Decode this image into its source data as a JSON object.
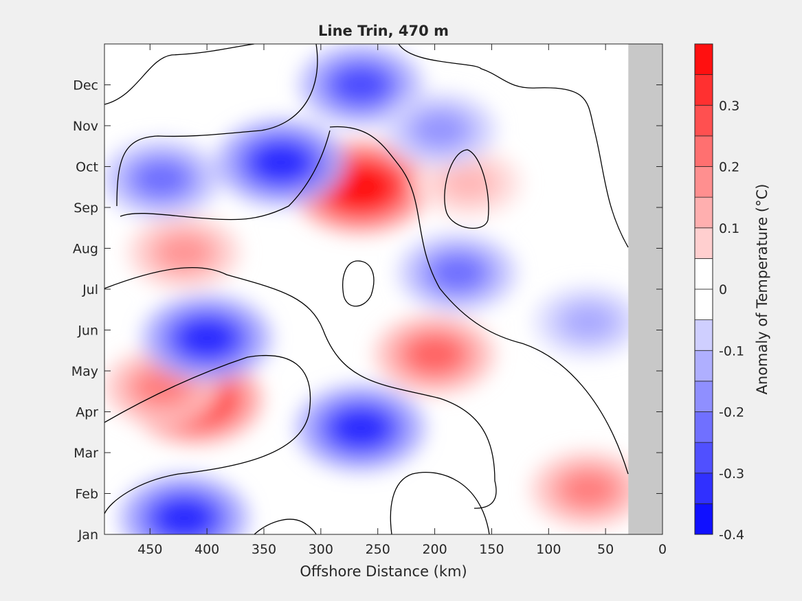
{
  "chart_data": {
    "type": "heatmap",
    "subtype": "filled-contour",
    "title": "Line Trin, 470 m",
    "xlabel": "Offshore Distance (km)",
    "ylabel": "",
    "colorbar_label": "Anomaly of Temperature (°C)",
    "x_reversed": true,
    "xlim": [
      490,
      0
    ],
    "x_ticks": [
      450,
      400,
      350,
      300,
      250,
      200,
      150,
      100,
      50,
      0
    ],
    "y_ticks": [
      "Jan",
      "Feb",
      "Mar",
      "Apr",
      "May",
      "Jun",
      "Jul",
      "Aug",
      "Sep",
      "Oct",
      "Nov",
      "Dec"
    ],
    "clim": [
      -0.4,
      0.4
    ],
    "colorbar_ticks": [
      "0.3",
      "0.2",
      "0.1",
      "0",
      "-0.1",
      "-0.2",
      "-0.3",
      "-0.4"
    ],
    "contour_levels": [
      -0.4,
      -0.35,
      -0.3,
      -0.25,
      -0.2,
      -0.15,
      -0.1,
      -0.05,
      0,
      0.05,
      0.1,
      0.15,
      0.2,
      0.25,
      0.3,
      0.35,
      0.4
    ],
    "no_data_region_x": [
      30,
      0
    ],
    "features": [
      {
        "x": 410,
        "month": 3.3,
        "value": 0.33
      },
      {
        "x": 440,
        "month": 3.6,
        "value": 0.18
      },
      {
        "x": 265,
        "month": 8.5,
        "value": 0.37
      },
      {
        "x": 420,
        "month": 6.9,
        "value": 0.15
      },
      {
        "x": 200,
        "month": 4.4,
        "value": 0.22
      },
      {
        "x": 65,
        "month": 1.1,
        "value": 0.18
      },
      {
        "x": 170,
        "month": 8.6,
        "value": 0.1
      },
      {
        "x": 400,
        "month": 4.8,
        "value": -0.3
      },
      {
        "x": 420,
        "month": 0.4,
        "value": -0.3
      },
      {
        "x": 265,
        "month": 2.6,
        "value": -0.3
      },
      {
        "x": 335,
        "month": 9.1,
        "value": -0.3
      },
      {
        "x": 440,
        "month": 8.7,
        "value": -0.2
      },
      {
        "x": 265,
        "month": 11.0,
        "value": -0.25
      },
      {
        "x": 180,
        "month": 6.4,
        "value": -0.2
      },
      {
        "x": 195,
        "month": 9.9,
        "value": -0.15
      },
      {
        "x": 65,
        "month": 5.2,
        "value": -0.12
      }
    ],
    "grid": false
  },
  "figure": {
    "background": "#f0f0f0",
    "nodata_color": "#c8c8c8"
  }
}
